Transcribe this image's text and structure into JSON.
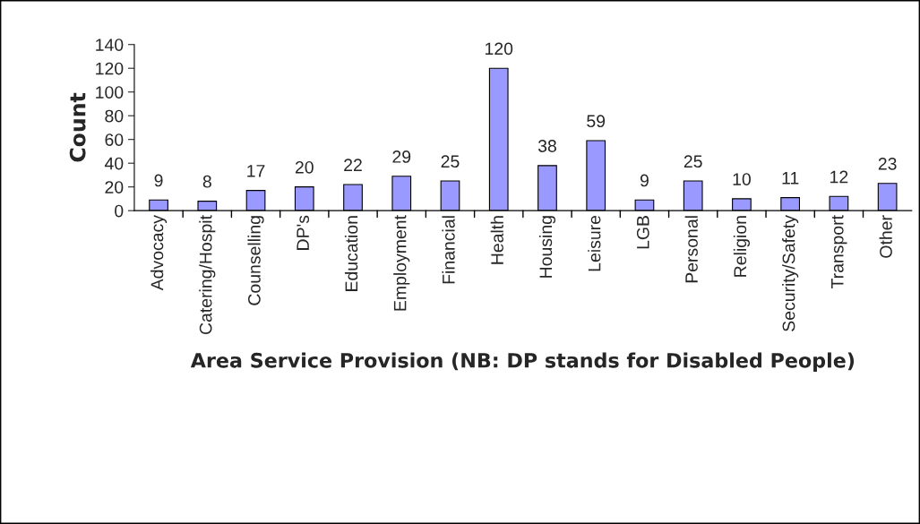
{
  "chart_data": {
    "type": "bar",
    "xlabel": "Area Service Provision (NB: DP stands for Disabled People)",
    "ylabel": "Count",
    "categories": [
      "Advocacy",
      "Catering/Hospit",
      "Counselling",
      "DP's",
      "Education",
      "Employment",
      "Financial",
      "Health",
      "Housing",
      "Leisure",
      "LGB",
      "Personal",
      "Religion",
      "Security/Safety",
      "Transport",
      "Other"
    ],
    "values": [
      9,
      8,
      17,
      20,
      22,
      29,
      25,
      120,
      38,
      59,
      9,
      25,
      10,
      11,
      12,
      23
    ],
    "color": "#9999ff",
    "ylim": [
      0,
      140
    ],
    "yticks": [
      0,
      20,
      40,
      60,
      80,
      100,
      120,
      140
    ],
    "data_labels": true,
    "grid": false,
    "legend": false
  }
}
